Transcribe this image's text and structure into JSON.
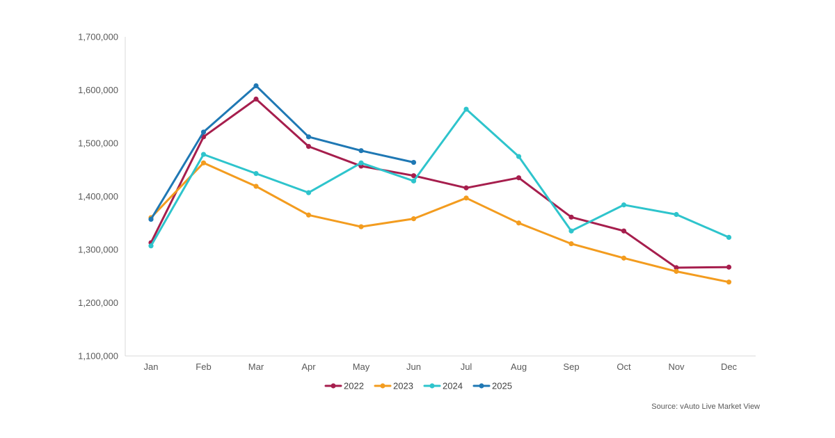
{
  "source_note": "Source: vAuto Live Market View",
  "chart_data": {
    "type": "line",
    "title": "",
    "xlabel": "",
    "ylabel": "",
    "categories": [
      "Jan",
      "Feb",
      "Mar",
      "Apr",
      "May",
      "Jun",
      "Jul",
      "Aug",
      "Sep",
      "Oct",
      "Nov",
      "Dec"
    ],
    "ylim": [
      1100000,
      1700000
    ],
    "yticks": [
      1100000,
      1200000,
      1300000,
      1400000,
      1500000,
      1600000,
      1700000
    ],
    "ytick_labels": [
      "1,100,000",
      "1,200,000",
      "1,300,000",
      "1,400,000",
      "1,500,000",
      "1,600,000",
      "1,700,000"
    ],
    "grid": false,
    "legend_position": "bottom",
    "series": [
      {
        "name": "2022",
        "color": "#a61e4d",
        "values": [
          1313000,
          1512000,
          1583000,
          1494000,
          1457000,
          1439000,
          1416000,
          1435000,
          1361000,
          1335000,
          1266000,
          1267000
        ]
      },
      {
        "name": "2023",
        "color": "#f39c1f",
        "values": [
          1360000,
          1463000,
          1419000,
          1365000,
          1343000,
          1358000,
          1397000,
          1350000,
          1311000,
          1284000,
          1259000,
          1239000
        ]
      },
      {
        "name": "2024",
        "color": "#2ec4cc",
        "values": [
          1307000,
          1479000,
          1443000,
          1407000,
          1463000,
          1429000,
          1564000,
          1475000,
          1335000,
          1384000,
          1366000,
          1323000
        ]
      },
      {
        "name": "2025",
        "color": "#1f78b4",
        "values": [
          1357000,
          1521000,
          1608000,
          1512000,
          1486000,
          1464000,
          null,
          null,
          null,
          null,
          null,
          null
        ]
      }
    ]
  }
}
